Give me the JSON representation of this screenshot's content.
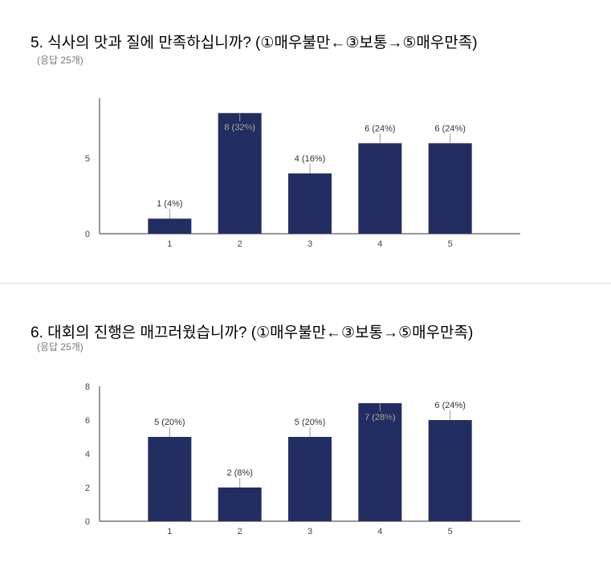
{
  "questions": [
    {
      "title": "5. 식사의 맛과 질에 만족하십니까? (①매우불만←③보통→⑤매우만족)",
      "count": "(응답 25개)"
    },
    {
      "title": "6. 대회의 진행은 매끄러웠습니까? (①매우불만←③보통→⑤매우만족)",
      "count": "(응답 25개)"
    }
  ],
  "bar_color": "#222d62",
  "chart_data": [
    {
      "type": "bar",
      "categories": [
        "1",
        "2",
        "3",
        "4",
        "5"
      ],
      "values": [
        1,
        8,
        4,
        6,
        6
      ],
      "data_labels": [
        "1 (4%)",
        "8 (32%)",
        "4 (16%)",
        "6 (24%)",
        "6 (24%)"
      ],
      "ylim": [
        0,
        9
      ],
      "yticks": [
        0,
        5
      ],
      "grid": false,
      "legend": "none"
    },
    {
      "type": "bar",
      "categories": [
        "1",
        "2",
        "3",
        "4",
        "5"
      ],
      "values": [
        5,
        2,
        5,
        7,
        6
      ],
      "data_labels": [
        "5 (20%)",
        "2 (8%)",
        "5 (20%)",
        "7 (28%)",
        "6 (24%)"
      ],
      "ylim": [
        0,
        8
      ],
      "yticks": [
        0,
        2,
        4,
        6,
        8
      ],
      "grid": false,
      "legend": "none"
    }
  ]
}
